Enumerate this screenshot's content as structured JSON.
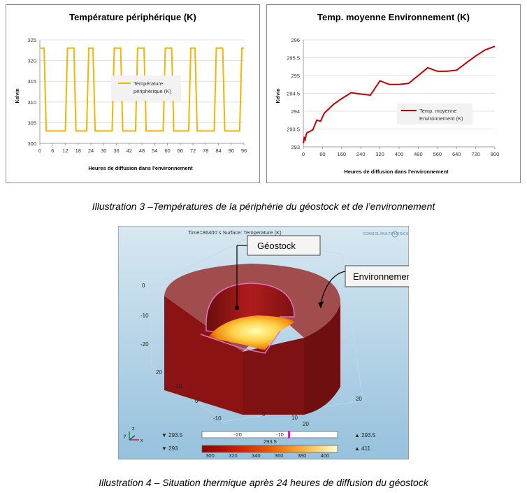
{
  "chart_data": [
    {
      "type": "line",
      "title": "Température périphérique (K)",
      "xlabel": "Heures de diffusion dans l'environnement",
      "ylabel": "Kelvin",
      "xlim": [
        0,
        96
      ],
      "ylim": [
        300,
        325
      ],
      "x_ticks": [
        "0",
        "6",
        "12",
        "18",
        "24",
        "30",
        "36",
        "42",
        "48",
        "54",
        "60",
        "66",
        "72",
        "78",
        "84",
        "90",
        "96"
      ],
      "y_ticks": [
        "300",
        "305",
        "310",
        "315",
        "320",
        "325"
      ],
      "grid": true,
      "legend_position": "center",
      "color": "#f2b500",
      "series": [
        {
          "name": "Température périphérique (K)",
          "x": [
            0,
            2,
            3,
            12,
            13,
            16,
            17,
            22,
            23,
            25,
            26,
            34,
            35,
            38,
            39,
            45,
            46,
            49,
            50,
            58,
            59,
            62,
            63,
            70,
            71,
            73,
            74,
            82,
            83,
            86,
            87,
            94,
            95,
            96
          ],
          "y": [
            323,
            323,
            303,
            303,
            323,
            323,
            303,
            303,
            323,
            323,
            303,
            303,
            323,
            323,
            303,
            303,
            323,
            323,
            303,
            303,
            323,
            323,
            303,
            303,
            323,
            323,
            303,
            303,
            323,
            323,
            303,
            303,
            323,
            323
          ]
        }
      ]
    },
    {
      "type": "line",
      "title": "Temp. moyenne Environnement (K)",
      "xlabel": "Heures de diffusion dans l'environnement",
      "ylabel": "Kelvin",
      "xlim": [
        0,
        800
      ],
      "ylim": [
        293,
        296
      ],
      "x_ticks": [
        "0",
        "80",
        "160",
        "240",
        "320",
        "400",
        "480",
        "560",
        "640",
        "720",
        "800"
      ],
      "y_ticks": [
        "293",
        "293.5",
        "294",
        "294.5",
        "295",
        "295.5",
        "296"
      ],
      "grid": true,
      "legend_position": "center-right",
      "color": "#c00000",
      "series": [
        {
          "name": "Temp. moyenne Environnement (K)",
          "x": [
            0,
            4,
            8,
            12,
            16,
            24,
            40,
            56,
            72,
            88,
            104,
            128,
            160,
            200,
            240,
            280,
            320,
            360,
            400,
            440,
            480,
            520,
            560,
            600,
            640,
            680,
            720,
            760,
            800
          ],
          "y": [
            293.1,
            293.25,
            293.2,
            293.35,
            293.4,
            293.42,
            293.48,
            293.75,
            293.72,
            293.95,
            294.05,
            294.2,
            294.35,
            294.52,
            294.48,
            294.45,
            294.85,
            294.75,
            294.75,
            294.78,
            295.0,
            295.22,
            295.12,
            295.12,
            295.15,
            295.35,
            295.55,
            295.72,
            295.82
          ]
        }
      ]
    }
  ],
  "captions": {
    "illustration3": "Illustration 3 –Températures de la périphérie du géostock et de l’environnement",
    "illustration4": "Illustration 4 – Situation thermique après 24 heures de diffusion du géostock"
  },
  "simulation": {
    "header": "Time=86400 s    Surface: Temperature (K)",
    "logo_text": "COMSOL MULTIPHYSICS",
    "callout_geostock": "Géostock",
    "callout_environnement": "Environnement",
    "axis_labels_left": [
      "0",
      "-10",
      "-20",
      "20",
      "10",
      "0"
    ],
    "axis_labels_bottom": [
      "-10",
      "0",
      "10",
      "20"
    ],
    "axis_label_right": "20",
    "slider1_left": "▼ 293.5",
    "slider1_right": "▲ 293.5",
    "slider1_ticks": [
      "-20",
      "-10"
    ],
    "slider1_value": "293.5",
    "slider2_left": "▼ 293",
    "slider2_right": "▲ 411",
    "colorbar_ticks": [
      "300",
      "320",
      "340",
      "360",
      "380",
      "400"
    ],
    "axis_triad": [
      "y",
      "z",
      "x"
    ],
    "colors": {
      "background_top": "#cfe3ee",
      "background_bottom": "#9fc6e0",
      "body": "#8b1414",
      "top": "#9a4a4a"
    }
  }
}
